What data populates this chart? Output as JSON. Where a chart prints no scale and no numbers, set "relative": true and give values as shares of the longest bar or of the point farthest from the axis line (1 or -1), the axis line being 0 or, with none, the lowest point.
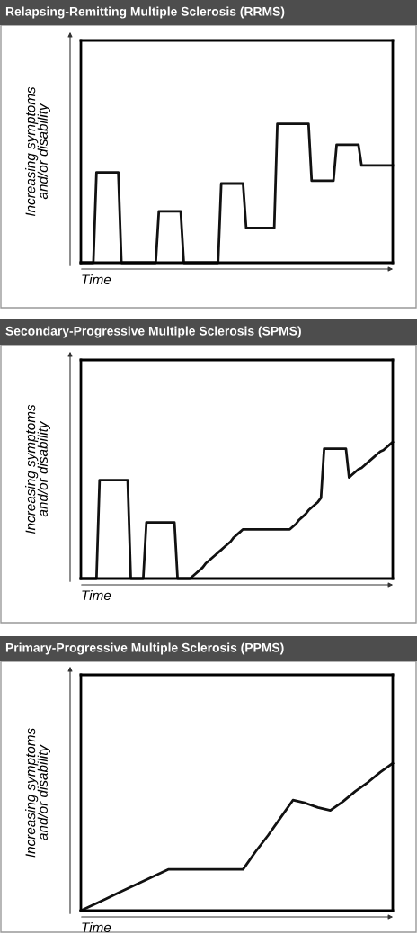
{
  "chart_data": [
    {
      "type": "line",
      "title": "Relapsing-Remitting Multiple Sclerosis (RRMS)",
      "ylabel": "Increasing symptoms\nand/or disability",
      "xlabel": "Time",
      "relative": true,
      "color": "#111111",
      "categories": [
        null,
        null,
        null,
        null,
        null,
        null,
        null,
        null,
        null,
        null,
        null,
        null,
        null,
        null,
        null,
        null,
        null,
        null,
        null,
        null,
        null,
        null,
        null,
        null,
        null,
        null,
        null,
        null,
        null,
        null,
        null,
        null,
        null,
        null,
        null,
        null,
        null,
        null,
        null,
        null,
        null,
        null,
        null,
        null,
        null,
        null,
        null,
        null,
        null,
        null,
        null,
        null,
        null,
        null,
        null,
        null,
        null,
        null,
        null,
        null,
        null,
        null,
        null,
        null,
        null,
        null,
        null,
        null,
        null,
        null,
        null,
        null,
        null,
        null,
        null,
        null,
        null,
        null,
        null,
        null,
        null,
        null,
        null,
        null,
        null,
        null,
        null,
        null,
        null,
        null,
        null,
        null,
        null,
        null,
        null,
        null,
        null,
        null,
        null,
        null,
        null
      ],
      "values": [
        0,
        0,
        0,
        0,
        0,
        0.65,
        0.65,
        0.65,
        0.65,
        0.65,
        0.65,
        0.65,
        0.65,
        0,
        0,
        0,
        0,
        0,
        0,
        0,
        0,
        0,
        0,
        0,
        0,
        0.37,
        0.37,
        0.37,
        0.37,
        0.37,
        0.37,
        0.37,
        0.37,
        0,
        0,
        0,
        0,
        0,
        0,
        0,
        0,
        0,
        0,
        0,
        0,
        0.57,
        0.57,
        0.57,
        0.57,
        0.57,
        0.57,
        0.57,
        0.57,
        0.25,
        0.25,
        0.25,
        0.25,
        0.25,
        0.25,
        0.25,
        0.25,
        0.25,
        0.25,
        1,
        1,
        1,
        1,
        1,
        1,
        1,
        1,
        1,
        1,
        1,
        0.59,
        0.59,
        0.59,
        0.59,
        0.59,
        0.59,
        0.59,
        0.59,
        0.85,
        0.85,
        0.85,
        0.85,
        0.85,
        0.85,
        0.85,
        0.85,
        0.7,
        0.7,
        0.7,
        0.7,
        0.7,
        0.7,
        0.7,
        0.7,
        0.7,
        0.7,
        0.7
      ]
    },
    {
      "type": "line",
      "title": "Secondary-Progressive Multiple Sclerosis (SPMS)",
      "ylabel": "Increasing symptoms\nand/or disability",
      "xlabel": "Time",
      "relative": true,
      "color": "#111111",
      "categories": [
        null,
        null,
        null,
        null,
        null,
        null,
        null,
        null,
        null,
        null,
        null,
        null,
        null,
        null,
        null,
        null,
        null,
        null,
        null,
        null,
        null,
        null,
        null,
        null,
        null,
        null,
        null,
        null,
        null,
        null,
        null,
        null,
        null,
        null,
        null,
        null,
        null,
        null,
        null,
        null,
        null,
        null,
        null,
        null,
        null,
        null,
        null,
        null,
        null,
        null,
        null,
        null,
        null,
        null,
        null,
        null,
        null,
        null,
        null,
        null,
        null,
        null,
        null,
        null,
        null,
        null,
        null,
        null,
        null,
        null,
        null,
        null,
        null,
        null,
        null,
        null,
        null,
        null,
        null,
        null,
        null,
        null,
        null,
        null,
        null,
        null,
        null,
        null,
        null,
        null,
        null,
        null,
        null,
        null,
        null,
        null,
        null,
        null,
        null,
        null,
        null
      ],
      "values": [
        0,
        0,
        0,
        0,
        0,
        0,
        0.72,
        0.72,
        0.72,
        0.72,
        0.72,
        0.72,
        0.72,
        0.72,
        0.72,
        0.72,
        0,
        0,
        0,
        0,
        0,
        0.41,
        0.41,
        0.41,
        0.41,
        0.41,
        0.41,
        0.41,
        0.41,
        0.41,
        0.41,
        0,
        0,
        0,
        0,
        0,
        0.02,
        0.04,
        0.06,
        0.08,
        0.11,
        0.13,
        0.15,
        0.17,
        0.19,
        0.21,
        0.23,
        0.25,
        0.27,
        0.3,
        0.32,
        0.34,
        0.36,
        0.36,
        0.36,
        0.36,
        0.36,
        0.36,
        0.36,
        0.36,
        0.36,
        0.36,
        0.36,
        0.36,
        0.36,
        0.36,
        0.36,
        0.36,
        0.38,
        0.4,
        0.43,
        0.45,
        0.47,
        0.5,
        0.52,
        0.54,
        0.56,
        0.59,
        0.95,
        0.95,
        0.95,
        0.95,
        0.95,
        0.95,
        0.95,
        0.95,
        0.74,
        0.76,
        0.78,
        0.8,
        0.81,
        0.83,
        0.85,
        0.87,
        0.89,
        0.91,
        0.93,
        0.94,
        0.96,
        0.98,
        1
      ]
    },
    {
      "type": "line",
      "title": "Primary-Progressive Multiple Sclerosis (PPMS)",
      "ylabel": "Increasing symptoms\nand/or disability",
      "xlabel": "Time",
      "relative": true,
      "color": "#111111",
      "categories": [
        null,
        null,
        null,
        null,
        null,
        null,
        null,
        null,
        null,
        null,
        null,
        null,
        null,
        null,
        null,
        null,
        null,
        null,
        null,
        null,
        null,
        null,
        null,
        null,
        null,
        null
      ],
      "values": [
        0,
        0.04,
        0.08,
        0.12,
        0.16,
        0.2,
        0.24,
        0.28,
        0.28,
        0.28,
        0.28,
        0.28,
        0.28,
        0.28,
        0.4,
        0.51,
        0.63,
        0.75,
        0.73,
        0.7,
        0.68,
        0.74,
        0.81,
        0.87,
        0.94,
        1
      ]
    }
  ]
}
